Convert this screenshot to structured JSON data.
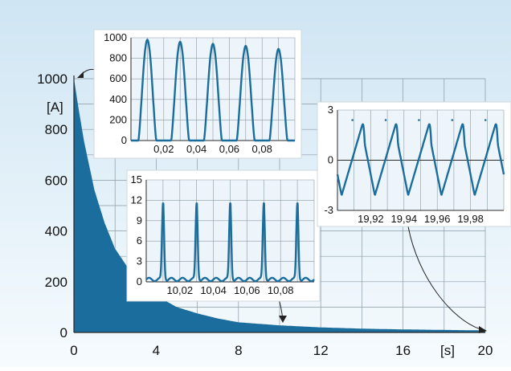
{
  "colors": {
    "trace": "#1a6d9c",
    "bg_top": "#cfe5f3",
    "bg_bottom": "#f6fbfe",
    "grid": "#8a99a4",
    "frame": "#2a2a2a"
  },
  "chart_data": [
    {
      "id": "main",
      "type": "area",
      "ylabel_unit": "[A]",
      "xlabel_unit": "[s]",
      "xlim": [
        0,
        20
      ],
      "ylim": [
        0,
        1000
      ],
      "x_ticks": [
        "0",
        "4",
        "8",
        "12",
        "16",
        "20"
      ],
      "y_ticks": [
        "0",
        "200",
        "400",
        "600",
        "800",
        "1000"
      ],
      "envelope": {
        "x": [
          0,
          0.25,
          0.5,
          1,
          1.5,
          2,
          3,
          4,
          5,
          6,
          7,
          8,
          10,
          12,
          14,
          16,
          18,
          20
        ],
        "y": [
          1000,
          870,
          750,
          560,
          430,
          330,
          210,
          145,
          100,
          75,
          55,
          40,
          28,
          20,
          15,
          12,
          10,
          8
        ]
      },
      "grid": true
    },
    {
      "id": "inset-start",
      "type": "line",
      "xlim": [
        0,
        0.1
      ],
      "ylim": [
        0,
        1000
      ],
      "x_ticks": [
        "0,02",
        "0,04",
        "0,06",
        "0,08"
      ],
      "y_ticks": [
        "0",
        "200",
        "400",
        "600",
        "800",
        "1000"
      ],
      "peaks": {
        "x": [
          0.01,
          0.03,
          0.05,
          0.07,
          0.09
        ],
        "y": [
          980,
          960,
          940,
          920,
          890
        ]
      },
      "grid": true
    },
    {
      "id": "inset-mid",
      "type": "line",
      "xlim": [
        10,
        10.1
      ],
      "ylim": [
        0,
        15
      ],
      "x_ticks": [
        "10,02",
        "10,04",
        "10,06",
        "10,08"
      ],
      "y_ticks": [
        "0",
        "3",
        "6",
        "9",
        "12",
        "15"
      ],
      "peaks": {
        "x": [
          10.01,
          10.03,
          10.05,
          10.07,
          10.09
        ],
        "y": [
          11.5,
          11.5,
          11.5,
          11.5,
          11.5
        ]
      },
      "grid": true
    },
    {
      "id": "inset-end",
      "type": "line",
      "xlim": [
        19.9,
        20
      ],
      "ylim": [
        -3,
        3
      ],
      "x_ticks": [
        "19,92",
        "19,94",
        "19,96",
        "19,98"
      ],
      "y_ticks": [
        "-3",
        "0",
        "3"
      ],
      "peaks": {
        "x": [
          19.909,
          19.929,
          19.949,
          19.969,
          19.989
        ],
        "y": [
          2.4,
          2.4,
          2.4,
          2.4,
          2.4
        ]
      },
      "grid": true
    }
  ]
}
